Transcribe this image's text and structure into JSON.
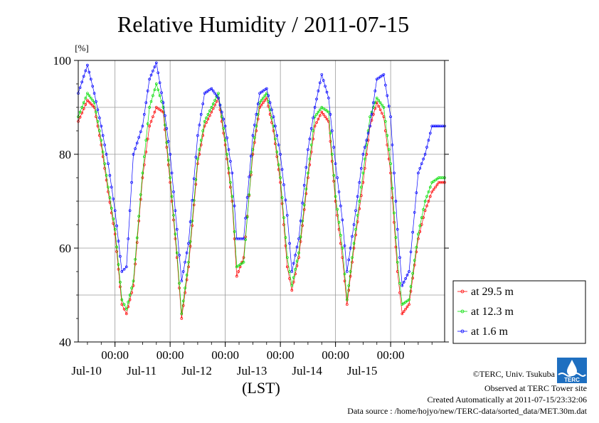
{
  "chart_data": {
    "type": "line",
    "title": "Relative Humidity / 2011-07-15",
    "ylabel": "[%]",
    "xlabel": "(LST)",
    "ylim": [
      40,
      100
    ],
    "yticks": [
      40,
      60,
      80,
      100
    ],
    "xlim": [
      "2011-07-09 08:00",
      "2011-07-15 23:30"
    ],
    "xticks": [
      {
        "time": "00:00",
        "date": "Jul-10"
      },
      {
        "time": "00:00",
        "date": "Jul-11"
      },
      {
        "time": "00:00",
        "date": "Jul-12"
      },
      {
        "time": "00:00",
        "date": "Jul-13"
      },
      {
        "time": "00:00",
        "date": "Jul-14"
      },
      {
        "time": "00:00",
        "date": "Jul-15"
      }
    ],
    "grid": true,
    "legend_position": "bottom-right, outside plot",
    "x_times": [
      "2011-07-09 08:00",
      "2011-07-09 12:00",
      "2011-07-09 15:00",
      "2011-07-09 18:00",
      "2011-07-09 21:00",
      "2011-07-10 00:00",
      "2011-07-10 03:00",
      "2011-07-10 05:00",
      "2011-07-10 08:00",
      "2011-07-10 12:00",
      "2011-07-10 15:00",
      "2011-07-10 18:00",
      "2011-07-10 21:00",
      "2011-07-11 00:00",
      "2011-07-11 03:00",
      "2011-07-11 05:00",
      "2011-07-11 08:00",
      "2011-07-11 12:00",
      "2011-07-11 15:00",
      "2011-07-11 18:00",
      "2011-07-11 21:00",
      "2011-07-12 00:00",
      "2011-07-12 03:00",
      "2011-07-12 05:00",
      "2011-07-12 08:00",
      "2011-07-12 12:00",
      "2011-07-12 15:00",
      "2011-07-12 18:00",
      "2011-07-12 21:00",
      "2011-07-13 00:00",
      "2011-07-13 03:00",
      "2011-07-13 05:00",
      "2011-07-13 08:00",
      "2011-07-13 12:00",
      "2011-07-13 15:00",
      "2011-07-13 18:00",
      "2011-07-13 21:00",
      "2011-07-14 00:00",
      "2011-07-14 03:00",
      "2011-07-14 05:00",
      "2011-07-14 08:00",
      "2011-07-14 12:00",
      "2011-07-14 15:00",
      "2011-07-14 18:00",
      "2011-07-14 21:00",
      "2011-07-15 00:00",
      "2011-07-15 03:00",
      "2011-07-15 05:00",
      "2011-07-15 08:00",
      "2011-07-15 12:00",
      "2011-07-15 15:00",
      "2011-07-15 18:00",
      "2011-07-15 21:00",
      "2011-07-15 23:30"
    ],
    "series": [
      {
        "name": "at 29.5 m",
        "color": "#ff0000",
        "values": [
          87,
          91.5,
          90,
          82,
          72,
          63,
          48,
          46,
          52,
          75,
          86,
          90,
          89,
          74,
          58,
          45,
          56,
          78,
          86,
          89,
          92,
          82,
          70,
          54,
          58,
          80,
          90,
          92,
          85,
          74,
          56,
          51,
          58,
          75,
          86,
          89,
          87,
          70,
          58,
          48,
          60,
          74,
          86,
          91,
          88,
          76,
          55,
          46,
          48,
          62,
          68,
          72,
          74,
          74
        ]
      },
      {
        "name": "at 12.3 m",
        "color": "#00dd00",
        "values": [
          88,
          93,
          91,
          83,
          73,
          64,
          49,
          47,
          53,
          76,
          90,
          95,
          90,
          75,
          59,
          46,
          57,
          79,
          87,
          90,
          93,
          83,
          71,
          56,
          57,
          81,
          91,
          93,
          86,
          75,
          58,
          52,
          59,
          76,
          88,
          90,
          89,
          71,
          60,
          49,
          61,
          76,
          88,
          92,
          90,
          78,
          57,
          48,
          49,
          63,
          70,
          74,
          75,
          75
        ]
      },
      {
        "name": "at 1.6 m",
        "color": "#0000ff",
        "values": [
          93,
          99,
          93,
          86,
          78,
          68,
          55,
          56,
          80,
          86,
          96,
          99.5,
          91,
          80,
          64,
          53,
          61,
          84,
          93,
          94,
          92,
          86,
          76,
          62,
          62,
          84,
          93,
          94,
          88,
          80,
          67,
          55,
          62,
          81,
          90,
          97,
          92,
          78,
          66,
          55,
          65,
          80,
          86,
          96,
          97,
          88,
          64,
          52,
          55,
          76,
          80,
          86,
          86,
          86
        ]
      }
    ]
  },
  "footer": {
    "credit": "©TERC, Univ. Tsukuba",
    "observed": "Observed at TERC Tower site",
    "created": "Created Automatically at 2011-07-15/23:32:06",
    "source": "Data source : /home/hojyo/new/TERC-data/sorted_data/MET.30m.dat",
    "logo_text": "TERC"
  }
}
